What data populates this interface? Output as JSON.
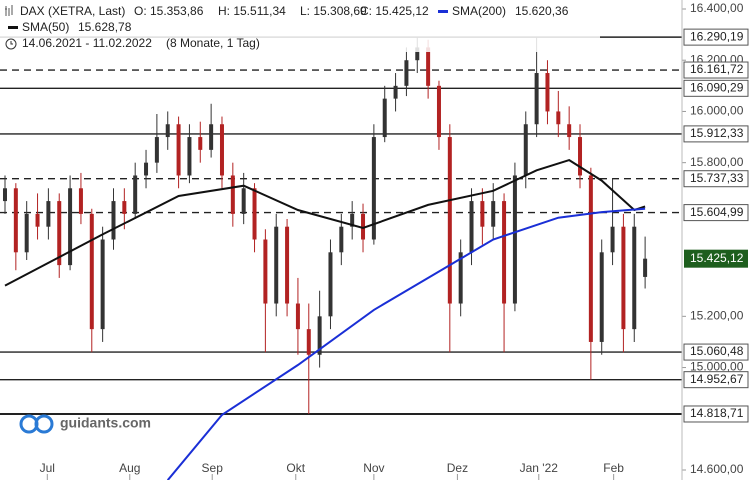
{
  "chart_data": {
    "type": "candlestick",
    "header": {
      "instrument": "DAX (XETRA, Last)",
      "open": "O: 15.353,86",
      "high": "H: 15.511,34",
      "low": "L: 15.308,69",
      "close": "C: 15.425,12",
      "range": "14.06.2021 - 11.02.2022",
      "duration": "(8 Monate, 1 Tag)"
    },
    "watermark": "guidants.com",
    "candles": {
      "up_color": "#333333",
      "down_color": "#b22222",
      "open": [
        15650,
        15700,
        15450,
        15600,
        15550,
        15650,
        15400,
        15700,
        15600,
        15150,
        15500,
        15650,
        15600,
        15750,
        15800,
        15900,
        15950,
        15750,
        15900,
        15850,
        15950,
        15750,
        15600,
        15700,
        15500,
        15250,
        15550,
        15250,
        15150,
        15050,
        15200,
        15450,
        15550,
        15600,
        15500,
        15900,
        16050,
        16100,
        16200,
        16250,
        16100,
        15900,
        15250,
        15450,
        15650,
        15550,
        15650,
        15250,
        15750,
        15950,
        16150,
        16000,
        15950,
        15900,
        15750,
        15100,
        15450,
        15550,
        15150,
        15353.86
      ],
      "high": [
        15750,
        15720,
        15650,
        15680,
        15700,
        15680,
        15750,
        15760,
        15620,
        15550,
        15700,
        15700,
        15800,
        15850,
        15990,
        16000,
        15980,
        15950,
        15960,
        16030,
        15980,
        15800,
        15760,
        15720,
        15540,
        15600,
        15580,
        15350,
        15250,
        15300,
        15500,
        15600,
        15650,
        15640,
        15950,
        16100,
        16150,
        16250,
        16290.19,
        16280,
        16120,
        15950,
        15500,
        15700,
        15700,
        15720,
        15680,
        15800,
        16000,
        16290,
        16200,
        16080,
        16020,
        15950,
        15780,
        15500,
        15740,
        15600,
        15600,
        15511.34
      ],
      "low": [
        15600,
        15380,
        15420,
        15500,
        15500,
        15350,
        15380,
        15560,
        15060,
        15100,
        15460,
        15540,
        15580,
        15700,
        15760,
        15850,
        15700,
        15720,
        15800,
        15820,
        15700,
        15550,
        15560,
        15450,
        15060,
        15200,
        15200,
        15050,
        14818.71,
        15000,
        15150,
        15400,
        15500,
        15450,
        15480,
        15880,
        16000,
        16060,
        16150,
        16050,
        15850,
        15060,
        15200,
        15400,
        15480,
        15500,
        15060,
        15220,
        15700,
        15900,
        15950,
        15900,
        15850,
        15700,
        14952.67,
        15050,
        15400,
        15060,
        15100,
        15308.69
      ],
      "close": [
        15700,
        15450,
        15600,
        15550,
        15650,
        15400,
        15700,
        15600,
        15150,
        15500,
        15650,
        15600,
        15750,
        15800,
        15900,
        15950,
        15750,
        15900,
        15850,
        15950,
        15750,
        15600,
        15700,
        15500,
        15250,
        15550,
        15250,
        15150,
        15050,
        15200,
        15450,
        15550,
        15600,
        15500,
        15900,
        16050,
        16100,
        16200,
        16250,
        16100,
        15900,
        15250,
        15450,
        15650,
        15550,
        15650,
        15250,
        15750,
        15950,
        16150,
        16000,
        15950,
        15900,
        15750,
        15100,
        15450,
        15550,
        15150,
        15550,
        15425.12
      ]
    },
    "last_price_label": "15.425,12",
    "last_price_color": "#1d5e1d",
    "series": [
      {
        "name": "SMA(50)",
        "value_label": "15.628,78",
        "color": "#111111",
        "x": [
          0,
          9,
          16,
          22,
          27,
          33,
          39,
          45,
          49,
          52,
          55,
          58,
          59
        ],
        "values": [
          15320,
          15520,
          15670,
          15710,
          15615,
          15545,
          15635,
          15690,
          15770,
          15810,
          15730,
          15615,
          15628.78
        ]
      },
      {
        "name": "SMA(200)",
        "value_label": "15.620,36",
        "color": "#1a2fd6",
        "x": [
          15,
          20,
          27,
          34,
          41,
          45,
          51,
          55,
          59
        ],
        "values": [
          14560,
          14815,
          15010,
          15225,
          15400,
          15500,
          15585,
          15607,
          15620.36
        ]
      }
    ],
    "levels": [
      {
        "value": 16290.19,
        "label": "16.290,19",
        "dashed": false
      },
      {
        "value": 16161.72,
        "label": "16.161,72",
        "dashed": true
      },
      {
        "value": 16090.29,
        "label": "16.090,29",
        "dashed": false
      },
      {
        "value": 15912.33,
        "label": "15.912,33",
        "dashed": false
      },
      {
        "value": 15737.33,
        "label": "15.737,33",
        "dashed": true
      },
      {
        "value": 15604.99,
        "label": "15.604,99",
        "dashed": true
      },
      {
        "value": 15060.48,
        "label": "15.060,48",
        "dashed": false
      },
      {
        "value": 14952.67,
        "label": "14.952,67",
        "dashed": false
      },
      {
        "value": 14818.71,
        "label": "14.818,71",
        "dashed": false
      }
    ],
    "ylim": [
      14600,
      16400
    ],
    "yticks": [
      {
        "value": 14600,
        "label": "14.600,00"
      },
      {
        "value": 15000,
        "label": "15.000,00"
      },
      {
        "value": 15200,
        "label": "15.200,00"
      },
      {
        "value": 15800,
        "label": "15.800,00"
      },
      {
        "value": 16000,
        "label": "16.000,00"
      },
      {
        "value": 16200,
        "label": "16.200,00"
      },
      {
        "value": 16400,
        "label": "16.400,00"
      }
    ],
    "xlim": [
      -0.46,
      62.4
    ],
    "xticks": [
      {
        "value": 3.9,
        "label": "Jul"
      },
      {
        "value": 11.5,
        "label": "Aug"
      },
      {
        "value": 19.1,
        "label": "Sep"
      },
      {
        "value": 26.8,
        "label": "Okt"
      },
      {
        "value": 34.0,
        "label": "Nov"
      },
      {
        "value": 41.7,
        "label": "Dez"
      },
      {
        "value": 49.2,
        "label": "Jan '22"
      },
      {
        "value": 56.1,
        "label": "Feb"
      }
    ]
  }
}
